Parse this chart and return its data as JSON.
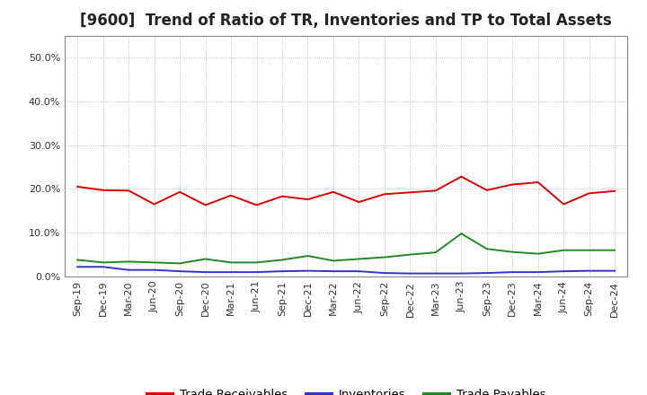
{
  "title": "[9600]  Trend of Ratio of TR, Inventories and TP to Total Assets",
  "labels": [
    "Sep-19",
    "Dec-19",
    "Mar-20",
    "Jun-20",
    "Sep-20",
    "Dec-20",
    "Mar-21",
    "Jun-21",
    "Sep-21",
    "Dec-21",
    "Mar-22",
    "Jun-22",
    "Sep-22",
    "Dec-22",
    "Mar-23",
    "Jun-23",
    "Sep-23",
    "Dec-23",
    "Mar-24",
    "Jun-24",
    "Sep-24",
    "Dec-24"
  ],
  "trade_receivables": [
    0.205,
    0.197,
    0.196,
    0.165,
    0.193,
    0.163,
    0.185,
    0.163,
    0.183,
    0.176,
    0.193,
    0.17,
    0.188,
    0.192,
    0.196,
    0.228,
    0.197,
    0.21,
    0.215,
    0.165,
    0.19,
    0.195
  ],
  "inventories": [
    0.022,
    0.022,
    0.015,
    0.015,
    0.012,
    0.01,
    0.01,
    0.01,
    0.012,
    0.013,
    0.012,
    0.012,
    0.008,
    0.007,
    0.007,
    0.007,
    0.008,
    0.01,
    0.01,
    0.012,
    0.013,
    0.013
  ],
  "trade_payables": [
    0.038,
    0.032,
    0.034,
    0.032,
    0.03,
    0.04,
    0.032,
    0.032,
    0.038,
    0.047,
    0.036,
    0.04,
    0.044,
    0.05,
    0.055,
    0.098,
    0.063,
    0.056,
    0.052,
    0.06,
    0.06,
    0.06
  ],
  "line_colors": {
    "trade_receivables": "#dd0000",
    "inventories": "#3333cc",
    "trade_payables": "#228822"
  },
  "legend_labels": [
    "Trade Receivables",
    "Inventories",
    "Trade Payables"
  ],
  "ylim": [
    0.0,
    0.55
  ],
  "yticks": [
    0.0,
    0.1,
    0.2,
    0.3,
    0.4,
    0.5
  ],
  "background_color": "#ffffff",
  "plot_bg_color": "#ffffff",
  "grid_color": "#999999",
  "title_fontsize": 12,
  "tick_fontsize": 8,
  "legend_fontsize": 9.5,
  "linewidth": 1.4
}
